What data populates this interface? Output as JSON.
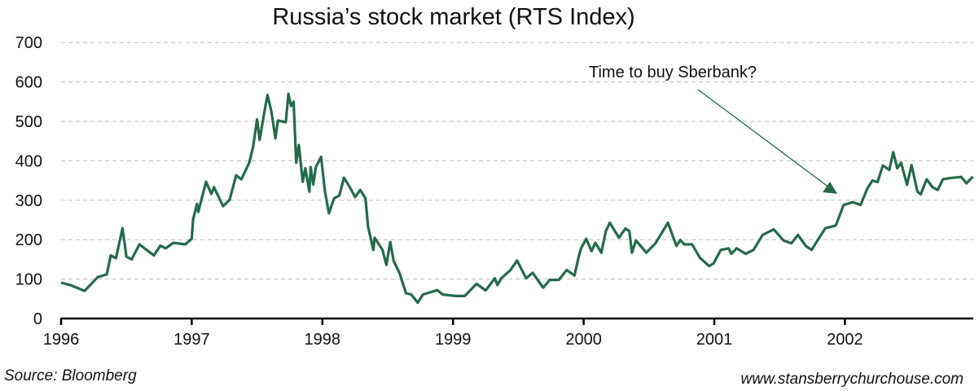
{
  "chart_data": {
    "type": "line",
    "title": "Russia’s stock market (RTS Index)",
    "xlabel": "",
    "ylabel": "",
    "xlim": [
      1996,
      2002.98
    ],
    "ylim": [
      0,
      700
    ],
    "grid": true,
    "x_ticks": [
      "1996",
      "1997",
      "1998",
      "1999",
      "2000",
      "2001",
      "2002"
    ],
    "y_ticks": [
      "0",
      "100",
      "200",
      "300",
      "400",
      "500",
      "600",
      "700"
    ],
    "annotation": "Time to buy Sberbank?",
    "source": "Source: Bloomberg",
    "website": "www.stansberrychurchouse.com",
    "line_color": "#236b4a",
    "series": [
      {
        "name": "RTS Index",
        "x": [
          1996.0,
          1996.07,
          1996.18,
          1996.28,
          1996.35,
          1996.38,
          1996.42,
          1996.47,
          1996.5,
          1996.54,
          1996.6,
          1996.71,
          1996.76,
          1996.8,
          1996.86,
          1996.95,
          1997.0,
          1997.01,
          1997.04,
          1997.05,
          1997.11,
          1997.15,
          1997.17,
          1997.24,
          1997.29,
          1997.34,
          1997.38,
          1997.44,
          1997.47,
          1997.5,
          1997.52,
          1997.55,
          1997.58,
          1997.61,
          1997.64,
          1997.66,
          1997.72,
          1997.74,
          1997.76,
          1997.78,
          1997.8,
          1997.82,
          1997.85,
          1997.87,
          1997.9,
          1997.91,
          1997.93,
          1997.95,
          1997.99,
          1998.02,
          1998.05,
          1998.09,
          1998.13,
          1998.165,
          1998.21,
          1998.25,
          1998.29,
          1998.33,
          1998.35,
          1998.39,
          1998.4,
          1998.46,
          1998.49,
          1998.52,
          1998.545,
          1998.59,
          1998.64,
          1998.68,
          1998.73,
          1998.77,
          1998.88,
          1998.92,
          1999.02,
          1999.09,
          1999.18,
          1999.25,
          1999.32,
          1999.34,
          1999.37,
          1999.44,
          1999.49,
          1999.56,
          1999.61,
          1999.69,
          1999.74,
          1999.81,
          1999.87,
          1999.93,
          1999.96,
          1999.98,
          2000.02,
          2000.06,
          2000.09,
          2000.135,
          2000.17,
          2000.2,
          2000.27,
          2000.32,
          2000.35,
          2000.37,
          2000.4,
          2000.48,
          2000.55,
          2000.645,
          2000.71,
          2000.74,
          2000.77,
          2000.83,
          2000.89,
          2000.96,
          2000.995,
          2001.05,
          2001.11,
          2001.13,
          2001.17,
          2001.24,
          2001.3,
          2001.37,
          2001.455,
          2001.53,
          2001.59,
          2001.64,
          2001.7,
          2001.745,
          2001.79,
          2001.85,
          2001.93,
          2001.99,
          2002.06,
          2002.12,
          2002.17,
          2002.21,
          2002.25,
          2002.29,
          2002.34,
          2002.37,
          2002.4,
          2002.43,
          2002.475,
          2002.51,
          2002.555,
          2002.58,
          2002.625,
          2002.67,
          2002.71,
          2002.75,
          2002.8,
          2002.89,
          2002.93,
          2002.98
        ],
        "y": [
          91,
          85,
          70,
          105,
          112,
          160,
          153,
          229,
          157,
          150,
          188,
          160,
          185,
          178,
          192,
          188,
          202,
          250,
          291,
          270,
          347,
          316,
          333,
          285,
          301,
          363,
          353,
          395,
          436,
          505,
          453,
          512,
          567,
          525,
          457,
          502,
          498,
          570,
          539,
          550,
          395,
          440,
          347,
          381,
          322,
          384,
          340,
          384,
          410,
          322,
          267,
          305,
          312,
          357,
          333,
          308,
          326,
          305,
          233,
          174,
          205,
          174,
          136,
          194,
          147,
          116,
          64,
          61,
          40,
          61,
          72,
          61,
          57,
          57,
          88,
          71,
          102,
          85,
          102,
          123,
          147,
          102,
          116,
          78,
          98,
          98,
          123,
          109,
          154,
          178,
          202,
          171,
          192,
          167,
          222,
          243,
          205,
          228,
          222,
          167,
          198,
          167,
          191,
          243,
          184,
          199,
          188,
          188,
          154,
          133,
          140,
          174,
          178,
          164,
          178,
          164,
          174,
          212,
          226,
          198,
          191,
          212,
          184,
          174,
          198,
          229,
          236,
          288,
          295,
          288,
          329,
          350,
          346,
          388,
          377,
          422,
          381,
          395,
          339,
          389,
          322,
          315,
          353,
          333,
          326,
          353,
          356,
          359,
          343,
          360
        ]
      }
    ]
  }
}
